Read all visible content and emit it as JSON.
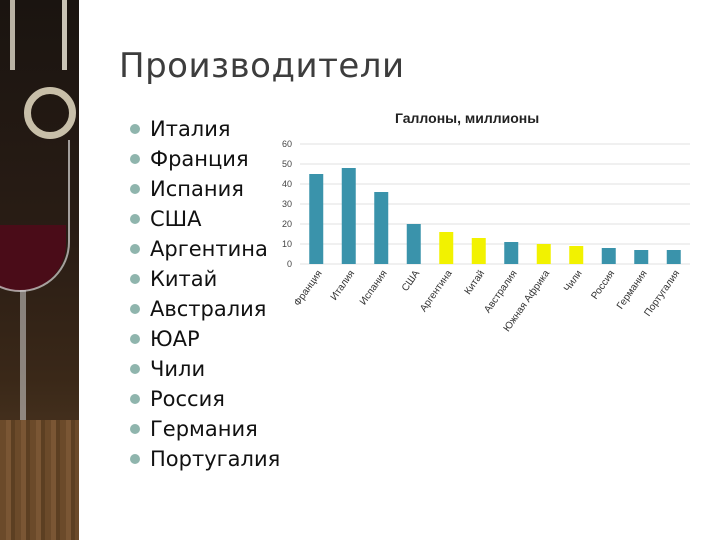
{
  "slide": {
    "title": "Производители",
    "bullets": [
      "Италия",
      "Франция",
      "Испания",
      "США",
      "Аргентина",
      "Китай",
      "Австралия",
      "ЮАР",
      "Чили",
      "Россия",
      "Германия",
      "Португалия"
    ]
  },
  "colors": {
    "bar_primary": "#3a93ab",
    "bar_highlight": "#f2f200",
    "bullet": "#8fb5ad"
  },
  "chart_data": {
    "type": "bar",
    "title": "Галлоны, миллионы",
    "xlabel": "",
    "ylabel": "",
    "ylim": [
      0,
      60
    ],
    "yticks": [
      "0",
      "10",
      "20",
      "30",
      "40",
      "50",
      "60"
    ],
    "grid": true,
    "categories": [
      "Франция",
      "Италия",
      "Испания",
      "США",
      "Аргентина",
      "Китай",
      "Австралия",
      "Южная Африка",
      "Чили",
      "Россия",
      "Германия",
      "Португалия"
    ],
    "values": [
      45,
      48,
      36,
      20,
      16,
      13,
      11,
      10,
      9,
      8,
      7,
      7
    ],
    "bar_colors": [
      "primary",
      "primary",
      "primary",
      "primary",
      "highlight",
      "highlight",
      "primary",
      "highlight",
      "highlight",
      "primary",
      "primary",
      "primary"
    ]
  }
}
